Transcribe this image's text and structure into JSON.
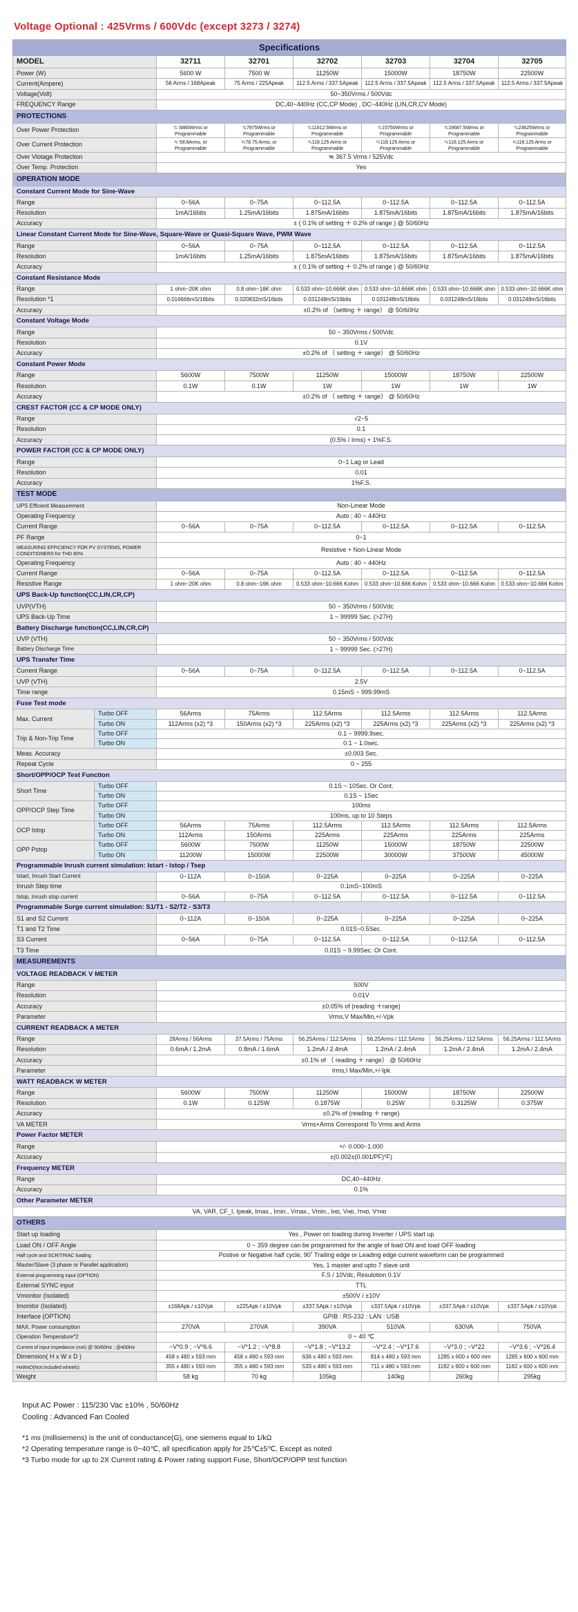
{
  "doc_title": "Voltage Optional : 425Vrms / 600Vdc (except 3273 / 3274)",
  "table": {
    "title": "Specifications",
    "rows": [
      {
        "t": "title"
      },
      {
        "t": "model",
        "label": "MODEL",
        "cells": [
          "32711",
          "32701",
          "32702",
          "32703",
          "32704",
          "32705"
        ]
      },
      {
        "t": "row",
        "label": "Power (W)",
        "cells": [
          "5600 W",
          "7500 W",
          "11250W",
          "15000W",
          "18750W",
          "22500W"
        ]
      },
      {
        "t": "row",
        "label": "Current(Ampere)",
        "cls": "sm",
        "cells": [
          "56 Arms / 168Apeak",
          "75 Arms / 225Apeak",
          "112.5 Arms / 337.5Apeak",
          "112.5 Arms / 337.5Apeak",
          "112.5 Arms / 337.5Apeak",
          "112.5 Arms / 337.5Apeak"
        ]
      },
      {
        "t": "row",
        "label": "Voltage(Volt)",
        "span": "50~350Vrms / 500Vdc"
      },
      {
        "t": "row",
        "label": "FREQUENCY Range",
        "span": "DC,40~440Hz (CC,CP Mode) , DC~440Hz (LIN,CR,CV Mode)"
      },
      {
        "t": "sec",
        "label": "PROTECTIONS"
      },
      {
        "t": "row",
        "label": "Over Power Protection",
        "cls": "xs",
        "cells": [
          "≒ 5880Wrms or Programmable",
          "≒7875Wrms or Programmable",
          "≒11812.5Wrms or Programmable",
          "≒15750Wrms or Programmable",
          "≒19687.5Wrms or Programmable",
          "≒23625Wrms or Programmable"
        ]
      },
      {
        "t": "row",
        "label": "Over Current Protection",
        "cls": "xs",
        "cells": [
          "≒ 58.8Arms, or Programmable",
          "≒78.75 Arms, or Programmable",
          "≒118.125 Arms or Programmable",
          "≒118.125 Arms or Programmable",
          "≒118.125 Arms or Programmable",
          "≒118.125 Arms or Programmable"
        ]
      },
      {
        "t": "row",
        "label": "Over Vlotage Protection",
        "span": "≒  367.5  Vrms / 525Vdc"
      },
      {
        "t": "row",
        "label": "Over Temp. Protection",
        "span": "Yes"
      },
      {
        "t": "sec",
        "label": "OPERATION MODE"
      },
      {
        "t": "sub",
        "label": "Constant Current Mode for Sine-Wave"
      },
      {
        "t": "row",
        "label": "Range",
        "cells": [
          "0~56A",
          "0~75A",
          "0~112.5A",
          "0~112.5A",
          "0~112.5A",
          "0~112.5A"
        ]
      },
      {
        "t": "row",
        "label": "Resolution",
        "cells": [
          "1mA/16bits",
          "1.25mA/16bits",
          "1.875mA/16bits",
          "1.875mA/16bits",
          "1.875mA/16bits",
          "1.875mA/16bits"
        ]
      },
      {
        "t": "row",
        "label": "Accuracy",
        "span": "± ( 0.1% of setting ＋ 0.2% of range ) @ 50/60Hz"
      },
      {
        "t": "sub",
        "label": "Linear Constant Current Mode for Sine-Wave, Square-Wave or Quasi-Square Wave, PWM Wave"
      },
      {
        "t": "row",
        "label": "Range",
        "cells": [
          "0~56A",
          "0~75A",
          "0~112.5A",
          "0~112.5A",
          "0~112.5A",
          "0~112.5A"
        ]
      },
      {
        "t": "row",
        "label": "Resolution",
        "cells": [
          "1mA/16bits",
          "1.25mA/16bits",
          "1.875mA/16bits",
          "1.875mA/16bits",
          "1.875mA/16bits",
          "1.875mA/16bits"
        ]
      },
      {
        "t": "row",
        "label": "Accuracy",
        "span": "± ( 0.1% of setting ＋ 0.2% of range ) @ 50/60Hz"
      },
      {
        "t": "sub",
        "label": "Constant Resistance Mode"
      },
      {
        "t": "row",
        "label": "Range",
        "cls": "sm",
        "cells": [
          "1 ohm~20K ohm",
          "0.8 ohm~16K ohm",
          "0.533 ohm~10.666K ohm",
          "0.533 ohm~10.666K ohm",
          "0.533 ohm~10.666K ohm",
          "0.533 ohm~10.666K ohm"
        ]
      },
      {
        "t": "row",
        "label": "Resolution *1",
        "cls": "sm",
        "cells": [
          "0.016666mS/16bits",
          "0.020832mS/16bits",
          "0.031248mS/16bits",
          "0.031248mS/16bits",
          "0.031248mS/16bits",
          "0.031248mS/16bits"
        ]
      },
      {
        "t": "row",
        "label": "Accuracy",
        "span": "±0.2% of （setting ＋ range） @ 50/60Hz"
      },
      {
        "t": "sub",
        "label": "Constant Voltage Mode"
      },
      {
        "t": "row",
        "label": "Range",
        "span": "50 ~ 350Vrms / 500Vdc"
      },
      {
        "t": "row",
        "label": "Resolution",
        "span": "0.1V"
      },
      {
        "t": "row",
        "label": "Accuracy",
        "span": "±0.2% of （ setting ＋ range） @ 50/60Hz"
      },
      {
        "t": "sub",
        "label": "Constant Power Mode"
      },
      {
        "t": "row",
        "label": "Range",
        "cells": [
          "5600W",
          "7500W",
          "11250W",
          "15000W",
          "18750W",
          "22500W"
        ]
      },
      {
        "t": "row",
        "label": "Resolution",
        "cells": [
          "0.1W",
          "0.1W",
          "1W",
          "1W",
          "1W",
          "1W"
        ]
      },
      {
        "t": "row",
        "label": "Accuracy",
        "span": "±0.2% of （ setting ＋ range） @ 50/60Hz"
      },
      {
        "t": "sub",
        "label": "CREST FACTOR (CC & CP MODE ONLY)"
      },
      {
        "t": "row",
        "label": "Range",
        "span": "√2~5"
      },
      {
        "t": "row",
        "label": "Resolution",
        "span": "0.1"
      },
      {
        "t": "row",
        "label": "Accuracy",
        "span": "(0.5% / Irms) + 1%F.S."
      },
      {
        "t": "sub",
        "label": "POWER FACTOR (CC & CP MODE ONLY)"
      },
      {
        "t": "row",
        "label": "Range",
        "span": "0~1 Lag or Lead"
      },
      {
        "t": "row",
        "label": "Resolution",
        "span": "0.01"
      },
      {
        "t": "row",
        "label": "Accuracy",
        "span": "1%F.S."
      },
      {
        "t": "sec",
        "label": "TEST MODE"
      },
      {
        "t": "row",
        "label": "UPS Efficient Measurement",
        "lcls": "sm",
        "span": "Non-Linear Mode"
      },
      {
        "t": "row",
        "label": "Operating Frequency",
        "span": "Auto ; 40 ~ 440Hz"
      },
      {
        "t": "row",
        "label": "Current Range",
        "cells": [
          "0~56A",
          "0~75A",
          "0~112.5A",
          "0~112.5A",
          "0~112.5A",
          "0~112.5A"
        ]
      },
      {
        "t": "row",
        "label": "PF Range",
        "span": "0~1"
      },
      {
        "t": "row",
        "label": "MEASURING EFFICIENCY FOR PV SYSTEMS, POWER CONDITIONERS for THD 80%",
        "lcls": "xs",
        "span": "Resistive + Non-Linear Mode"
      },
      {
        "t": "row",
        "label": "Operating Frequency",
        "span": "Auto ; 40 ~ 440Hz"
      },
      {
        "t": "row",
        "label": "Current Range",
        "cells": [
          "0~56A",
          "0~75A",
          "0~112.5A",
          "0~112.5A",
          "0~112.5A",
          "0~112.5A"
        ]
      },
      {
        "t": "row",
        "label": "Resistive Range",
        "cls": "sm",
        "cells": [
          "1 ohm~20K ohm",
          "0.8 ohm~16K ohm",
          "0.533 ohm~10.666 Kohm",
          "0.533 ohm~10.666 Kohm",
          "0.533 ohm~10.666 Kohm",
          "0.533 ohm~10.666 Kohm"
        ]
      },
      {
        "t": "sub",
        "label": "UPS Back-Up function(CC,LIN,CR,CP)"
      },
      {
        "t": "row",
        "label": "UVP(VTH)",
        "span": "50 ~ 350Vrms / 500Vdc"
      },
      {
        "t": "row",
        "label": "UPS Back-Up Time",
        "span": "1 ~ 99999 Sec. (>27H)"
      },
      {
        "t": "sub",
        "label": "Battery Discharge function(CC,LIN,CR,CP)"
      },
      {
        "t": "row",
        "label": "UVP (VTH)",
        "span": "50 ~ 350Vrms / 500Vdc"
      },
      {
        "t": "row",
        "label": "Battery Discharge Time",
        "lcls": "sm",
        "span": "1 ~ 99999 Sec. (>27H)"
      },
      {
        "t": "sub",
        "label": "UPS Transfer Time"
      },
      {
        "t": "row",
        "label": "Current Range",
        "cells": [
          "0~56A",
          "0~75A",
          "0~112.5A",
          "0~112.5A",
          "0~112.5A",
          "0~112.5A"
        ]
      },
      {
        "t": "row",
        "label": "UVP (VTH)",
        "span": "2.5V"
      },
      {
        "t": "row",
        "label": "Time range",
        "span": "0.15mS ~ 999.99mS"
      },
      {
        "t": "sub",
        "label": "Fuse Test mode"
      },
      {
        "t": "row",
        "label": "Max. Current",
        "rows": 2,
        "sub": "Turbo OFF",
        "cells": [
          "56Arms",
          "75Arms",
          "112.5Arms",
          "112.5Arms",
          "112.5Arms",
          "112.5Arms"
        ]
      },
      {
        "t": "row",
        "sub": "Turbo ON",
        "cells": [
          "112Arms (x2) *3",
          "150Arms (x2) *3",
          "225Arms (x2) *3",
          "225Arms (x2) *3",
          "225Arms (x2) *3",
          "225Arms (x2) *3"
        ]
      },
      {
        "t": "row",
        "label": "Trip & Non-Trip Time",
        "rows": 2,
        "sub": "Turbo OFF",
        "span": "0.1 ~ 9999.9sec."
      },
      {
        "t": "row",
        "sub": "Turbo ON",
        "span": "0.1 ~ 1.0sec."
      },
      {
        "t": "row",
        "label": "Meas. Accuracy",
        "span": "±0.003 Sec."
      },
      {
        "t": "row",
        "label": "Repeat Cycle",
        "span": "0 ~ 255"
      },
      {
        "t": "sub",
        "label": "Short/OPP/OCP Test Function"
      },
      {
        "t": "row",
        "label": "Short Time",
        "rows": 2,
        "sub": "Turbo OFF",
        "span": "0.1S  ~ 10Sec. Or Cont."
      },
      {
        "t": "row",
        "sub": "Turbo ON",
        "span": "0.1S  ~ 1Sec"
      },
      {
        "t": "row",
        "label": "OPP/OCP Step Time",
        "rows": 2,
        "sub": "Turbo OFF",
        "span": "100ms"
      },
      {
        "t": "row",
        "sub": "Turbo ON",
        "span": "100ms, up to 10 Steps"
      },
      {
        "t": "row",
        "label": "OCP Istop",
        "rows": 2,
        "sub": "Turbo OFF",
        "cells": [
          "56Arms",
          "75Arms",
          "112.5Arms",
          "112.5Arms",
          "112.5Arms",
          "112.5Arms"
        ]
      },
      {
        "t": "row",
        "sub": "Turbo ON",
        "cells": [
          "112Arms",
          "150Arms",
          "225Arms",
          "225Arms",
          "225Arms",
          "225Arms"
        ]
      },
      {
        "t": "row",
        "label": "OPP Pstop",
        "rows": 2,
        "sub": "Turbo OFF",
        "cells": [
          "5600W",
          "7500W",
          "11250W",
          "15000W",
          "18750W",
          "22500W"
        ]
      },
      {
        "t": "row",
        "sub": "Turbo ON",
        "cells": [
          "11200W",
          "15000W",
          "22500W",
          "30000W",
          "37500W",
          "45000W"
        ]
      },
      {
        "t": "sub",
        "label": "Programmable Inrush current simulation: Istart - Istop / Tsep"
      },
      {
        "t": "row",
        "label": "Istart, Inrush Start Current",
        "lcls": "sm",
        "cells": [
          "0~112A",
          "0~150A",
          "0~225A",
          "0~225A",
          "0~225A",
          "0~225A"
        ]
      },
      {
        "t": "row",
        "label": "Inrush Step time",
        "span": "0.1mS~100mS"
      },
      {
        "t": "row",
        "label": "Istop, Inrush stop current",
        "lcls": "sm",
        "cells": [
          "0~56A",
          "0~75A",
          "0~112.5A",
          "0~112.5A",
          "0~112.5A",
          "0~112.5A"
        ]
      },
      {
        "t": "sub",
        "label": "Programmable Surge current simulation: S1/T1 - S2/T2 - S3/T3"
      },
      {
        "t": "row",
        "label": "S1 and S2 Current",
        "cells": [
          "0~112A",
          "0~150A",
          "0~225A",
          "0~225A",
          "0~225A",
          "0~225A"
        ]
      },
      {
        "t": "row",
        "label": "T1 and T2 Time",
        "span": "0.01S~0.5Sec."
      },
      {
        "t": "row",
        "label": "S3 Current",
        "cells": [
          "0~56A",
          "0~75A",
          "0~112.5A",
          "0~112.5A",
          "0~112.5A",
          "0~112.5A"
        ]
      },
      {
        "t": "row",
        "label": "T3 Time",
        "span": "0.01S  ~ 9.99Sec. Or Cont."
      },
      {
        "t": "sec",
        "label": "MEASUREMENTS"
      },
      {
        "t": "sub",
        "label": "VOLTAGE READBACK V METER"
      },
      {
        "t": "row",
        "label": "Range",
        "span": "500V"
      },
      {
        "t": "row",
        "label": "Resolution",
        "span": "0.01V"
      },
      {
        "t": "row",
        "label": "Accuracy",
        "span": "±0.05% of (reading ＋range)"
      },
      {
        "t": "row",
        "label": "Parameter",
        "span": "Vrms,V Max/Min,+/-Vpk"
      },
      {
        "t": "sub",
        "label": "CURRENT READBACK A METER"
      },
      {
        "t": "row",
        "label": "Range",
        "cls": "sm",
        "cells": [
          "28Arms / 56Arms",
          "37.5Arms / 75Arms",
          "56.25Arms / 112.5Arms",
          "56.25Arms / 112.5Arms",
          "56.25Arms / 112.5Arms",
          "56.25Arms / 112.5Arms"
        ]
      },
      {
        "t": "row",
        "label": "Resolution",
        "cells": [
          "0.6mA / 1.2mA",
          "0.8mA / 1.6mA",
          "1.2mA / 2.4mA",
          "1.2mA / 2.4mA",
          "1.2mA / 2.4mA",
          "1.2mA / 2.4mA"
        ]
      },
      {
        "t": "row",
        "label": "Accuracy",
        "span": "±0.1% of （ reading ＋ range） @ 50/60Hz"
      },
      {
        "t": "row",
        "label": "Parameter",
        "span": "Irms,I Max/Min,+/-Ipk"
      },
      {
        "t": "sub",
        "label": "WATT READBACK W METER"
      },
      {
        "t": "row",
        "label": "Range",
        "cells": [
          "5600W",
          "7500W",
          "11250W",
          "15000W",
          "18750W",
          "22500W"
        ]
      },
      {
        "t": "row",
        "label": "Resolution",
        "cells": [
          "0.1W",
          "0.125W",
          "0.1875W",
          "0.25W",
          "0.3125W",
          "0.375W"
        ]
      },
      {
        "t": "row",
        "label": "Accuracy",
        "span": "±0.2% of  (reading ＋ range)"
      },
      {
        "t": "row",
        "label": "VA METER",
        "span": "Vrms×Arms Correspond To Vrms and Arms"
      },
      {
        "t": "sub",
        "label": "Power Factor METER"
      },
      {
        "t": "row",
        "label": "Range",
        "span": "+/- 0.000~1.000"
      },
      {
        "t": "row",
        "label": "Accuracy",
        "span": "±(0.002±(0.001/PF)*F)"
      },
      {
        "t": "sub",
        "label": "Frequency METER"
      },
      {
        "t": "row",
        "label": "Range",
        "span": "DC,40~440Hz"
      },
      {
        "t": "row",
        "label": "Accuracy",
        "span": "0.1%"
      },
      {
        "t": "sub",
        "label": "Other Parameter METER"
      },
      {
        "t": "row",
        "span": "VA, VAR, CF_I, Ipeak, Imax., Imin., Vmax., Vmin., Iʜᴅ, Vʜᴅ, Iᴛʜᴅ, Vᴛʜᴅ"
      },
      {
        "t": "sec",
        "label": "OTHERS"
      },
      {
        "t": "row",
        "label": "Start up loading",
        "span": "Yes , Power on loading during Inverter / UPS start up"
      },
      {
        "t": "row",
        "label": "Load ON / OFF Angle",
        "span": "0 ~ 359 degree can be programmed for the angle of load ON and load OFF loading"
      },
      {
        "t": "row",
        "label": "Half cycle and SCR/TRIAC loading",
        "lcls": "xs",
        "span": "Postive or Negative half cycle, 90˚ Trailing edge or Leading edge current waveform can be programmed"
      },
      {
        "t": "row",
        "label": "Master/Slave (3 phase or Parallel application)",
        "lcls": "sm",
        "span": "Yes, 1 master and upto 7 slave unit"
      },
      {
        "t": "row",
        "label": "External programming input (OPTION)",
        "lcls": "xs",
        "span": "F.S / 10Vdc, Resulotion 0.1V"
      },
      {
        "t": "row",
        "label": "External SYNC input",
        "span": "TTL"
      },
      {
        "t": "row",
        "label": "Vmonitor (Isolated)",
        "span": "±500V / ±10V"
      },
      {
        "t": "row",
        "label": "Imonitor (Isolated)",
        "cls": "sm",
        "cells": [
          "±168Apk / ±10Vpk",
          "±225Apk / ±10Vpk",
          "±337.5Apk / ±10Vpk",
          "±337.5Apk / ±10Vpk",
          "±337.5Apk / ±10Vpk",
          "±337.5Apk / ±10Vpk"
        ]
      },
      {
        "t": "row",
        "label": "Interface (OPTION)",
        "span": "GPIB : RS-232 : LAN : USB"
      },
      {
        "t": "row",
        "label": "MAX. Power consumption",
        "lcls": "sm",
        "cells": [
          "270VA",
          "270VA",
          "390VA",
          "510VA",
          "630VA",
          "750VA"
        ]
      },
      {
        "t": "row",
        "label": "Operation Temperature*2",
        "lcls": "sm",
        "span": "0 ~ 40 ℃"
      },
      {
        "t": "row",
        "label": "Current of input impedance (mA) @ 50/60Hz ; @400Hz",
        "lcls": "xs",
        "cells": [
          "~V*0.9 ; ~V*6.6",
          "~V*1.2 ; ~V*8.8",
          "~V*1.8 ; ~V*13.2",
          "~V*2.4 ; ~V*17.6",
          "~V*3.0 ; ~V*22",
          "~V*3.6 ; ~V*26.4"
        ]
      },
      {
        "t": "row",
        "label": "Dimension( H x W x D )",
        "cls": "sm",
        "cells": [
          "458 x 480 x 593 mm",
          "458 x 480 x 593 mm",
          "636 x 480 x 593 mm",
          "814 x 480 x 593 mm",
          "1285 x 600 x 600 mm",
          "1285 x 600 x 600 mm"
        ]
      },
      {
        "t": "row",
        "label": "HxWxD(Not included wheels)",
        "lcls": "xs",
        "cls": "sm",
        "cells": [
          "355 x 480 x 593 mm",
          "355 x 480 x 593 mm",
          "533 x 480 x 593 mm",
          "711 x 480 x 593 mm",
          "1182 x 600 x 600 mm",
          "1182 x 600 x 600 mm"
        ]
      },
      {
        "t": "row",
        "label": "Weight",
        "cells": [
          "58 kg",
          "70 kg",
          "105kg",
          "140kg",
          "260kg",
          "295kg"
        ]
      }
    ]
  },
  "footer": {
    "line1": "Input AC Power : 115/230 Vac ±10% , 50/60Hz",
    "line2": "Cooling : Advanced Fan Cooled",
    "note1": "*1 ms (millisiemens) is the unit of conductance(G), one siemens equal to 1/kΩ",
    "note2": "*2 Operating temperature range is 0~40℃, all specification apply for 25℃±5℃, Except as noted",
    "note3": "*3 Turbo mode for up to 2X Current rating & Power rating support Fuse, Short/OCP/OPP test function"
  }
}
